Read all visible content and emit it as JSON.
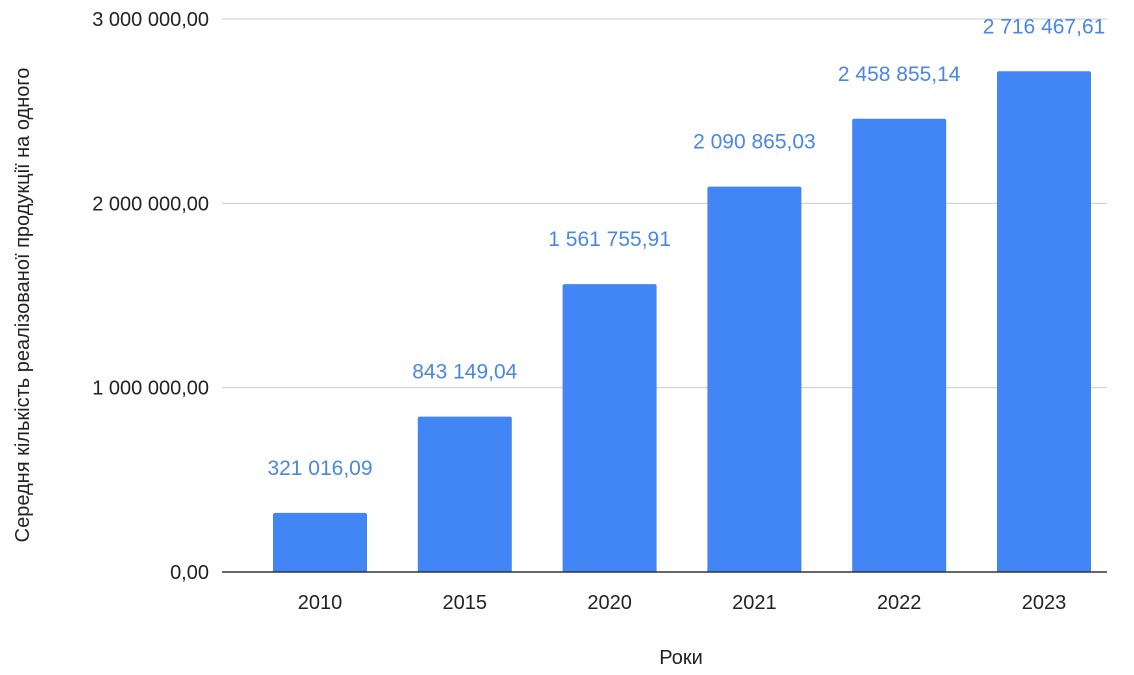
{
  "chart_data": {
    "type": "bar",
    "categories": [
      "2010",
      "2015",
      "2020",
      "2021",
      "2022",
      "2023"
    ],
    "values": [
      321016.09,
      843149.04,
      1561755.91,
      2090865.03,
      2458855.14,
      2716467.61
    ],
    "value_labels": [
      "321 016,09",
      "843 149,04",
      "1 561 755,91",
      "2 090 865,03",
      "2 458 855,14",
      "2 716 467,61"
    ],
    "title": "",
    "xlabel": "Роки",
    "ylabel": "Середня кількість реалізованої продукції на одного",
    "ylim": [
      0,
      3000000
    ],
    "yticks": [
      0,
      1000000,
      2000000,
      3000000
    ],
    "ytick_labels": [
      "0,00",
      "1 000 000,00",
      "2 000 000,00",
      "3 000 000,00"
    ],
    "grid": true,
    "legend": "none",
    "bar_color": "#4285f4",
    "label_color": "#4a86e8",
    "grid_color": "#cccccc",
    "axis_color": "#333333"
  }
}
